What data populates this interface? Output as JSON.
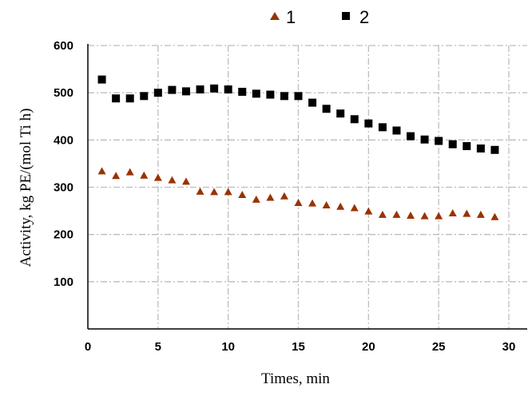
{
  "chart_data": {
    "type": "scatter",
    "title": "",
    "xlabel": "Times, min",
    "ylabel": "Activity, kg PE/(mol Ti h)",
    "xlim": [
      0,
      30
    ],
    "ylim": [
      0,
      600
    ],
    "xticks": [
      0,
      5,
      10,
      15,
      20,
      25,
      30
    ],
    "yticks": [
      100,
      200,
      300,
      400,
      500,
      600
    ],
    "grid": true,
    "legend_position": "top",
    "series": [
      {
        "name": "1",
        "marker": "triangle",
        "color": "#993300",
        "x": [
          1,
          2,
          3,
          4,
          5,
          6,
          7,
          8,
          9,
          10,
          11,
          12,
          13,
          14,
          15,
          16,
          17,
          18,
          19,
          20,
          21,
          22,
          23,
          24,
          25,
          26,
          27,
          28,
          29
        ],
        "values": [
          334,
          324,
          332,
          325,
          320,
          315,
          312,
          291,
          290,
          290,
          284,
          274,
          278,
          281,
          267,
          266,
          262,
          259,
          256,
          249,
          242,
          242,
          240,
          239,
          239,
          245,
          244,
          242,
          237
        ]
      },
      {
        "name": "2",
        "marker": "square",
        "color": "#000000",
        "x": [
          1,
          2,
          3,
          4,
          5,
          6,
          7,
          8,
          9,
          10,
          11,
          12,
          13,
          14,
          15,
          16,
          17,
          18,
          19,
          20,
          21,
          22,
          23,
          24,
          25,
          26,
          27,
          28,
          29
        ],
        "values": [
          528,
          488,
          488,
          493,
          500,
          506,
          503,
          507,
          509,
          507,
          502,
          498,
          496,
          493,
          493,
          479,
          466,
          456,
          444,
          435,
          427,
          420,
          408,
          401,
          398,
          391,
          387,
          382,
          379
        ]
      }
    ]
  }
}
